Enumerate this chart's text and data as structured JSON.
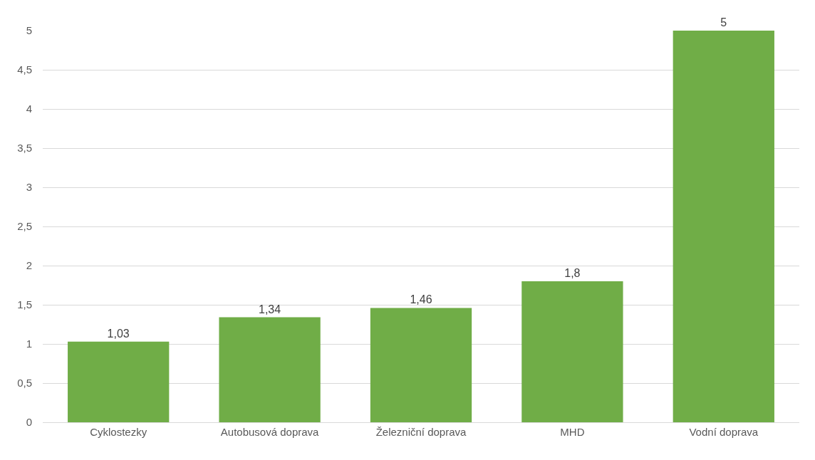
{
  "chart_data": {
    "type": "bar",
    "categories": [
      "Cyklostezky",
      "Autobusová doprava",
      "Železniční doprava",
      "MHD",
      "Vodní doprava"
    ],
    "values": [
      1.03,
      1.34,
      1.46,
      1.8,
      5
    ],
    "value_labels": [
      "1,03",
      "1,34",
      "1,46",
      "1,8",
      "5"
    ],
    "color": "#70ad47",
    "ylim": [
      0,
      5
    ],
    "yticks": [
      0,
      {
        "value": 0.5,
        "label": "0,5"
      },
      1,
      {
        "value": 1.5,
        "label": "1,5"
      },
      2,
      {
        "value": 2.5,
        "label": "2,5"
      },
      3,
      {
        "value": 3.5,
        "label": "3,5"
      },
      4,
      {
        "value": 4.5,
        "label": "4,5"
      },
      5
    ],
    "grid": "y",
    "legend": false
  }
}
